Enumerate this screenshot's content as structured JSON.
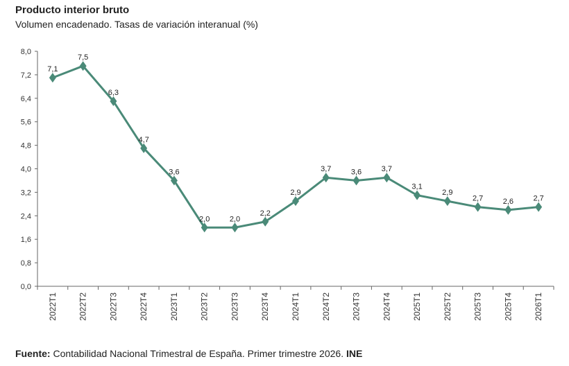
{
  "header": {
    "title": "Producto interior bruto",
    "subtitle": "Volumen encadenado. Tasas de variación interanual (%)"
  },
  "footer": {
    "source_label": "Fuente:",
    "source_text": " Contabilidad Nacional Trimestral de España. Primer trimestre 2026. ",
    "source_org": "INE"
  },
  "colors": {
    "series": "#4a8a78",
    "axis": "#666666"
  },
  "chart_data": {
    "type": "line",
    "title": "Producto interior bruto",
    "subtitle": "Volumen encadenado. Tasas de variación interanual (%)",
    "categories": [
      "2022T1",
      "2022T2",
      "2022T3",
      "2022T4",
      "2023T1",
      "2023T2",
      "2023T3",
      "2023T4",
      "2024T1",
      "2024T2",
      "2024T3",
      "2024T4",
      "2025T1",
      "2025T2",
      "2025T3",
      "2025T4",
      "2026T1"
    ],
    "series": [
      {
        "values": [
          7.1,
          7.5,
          6.3,
          4.7,
          3.6,
          2.0,
          2.0,
          2.2,
          2.9,
          3.7,
          3.6,
          3.7,
          3.1,
          2.9,
          2.7,
          2.6,
          2.7
        ],
        "labels": [
          "7,1",
          "7,5",
          "6,3",
          "4,7",
          "3,6",
          "2,0",
          "2,0",
          "2,2",
          "2,9",
          "3,7",
          "3,6",
          "3,7",
          "3,1",
          "2,9",
          "2,7",
          "2,6",
          "2,7"
        ]
      }
    ],
    "ylim": [
      0,
      8
    ],
    "yticks": [
      0,
      0.8,
      1.6,
      2.4,
      3.2,
      4.0,
      4.8,
      5.6,
      6.4,
      7.2,
      8.0
    ],
    "ytick_labels": [
      "0,0",
      "0,8",
      "1,6",
      "2,4",
      "3,2",
      "4,0",
      "4,8",
      "5,6",
      "6,4",
      "7,2",
      "8,0"
    ],
    "grid": false,
    "marker": "diamond"
  }
}
